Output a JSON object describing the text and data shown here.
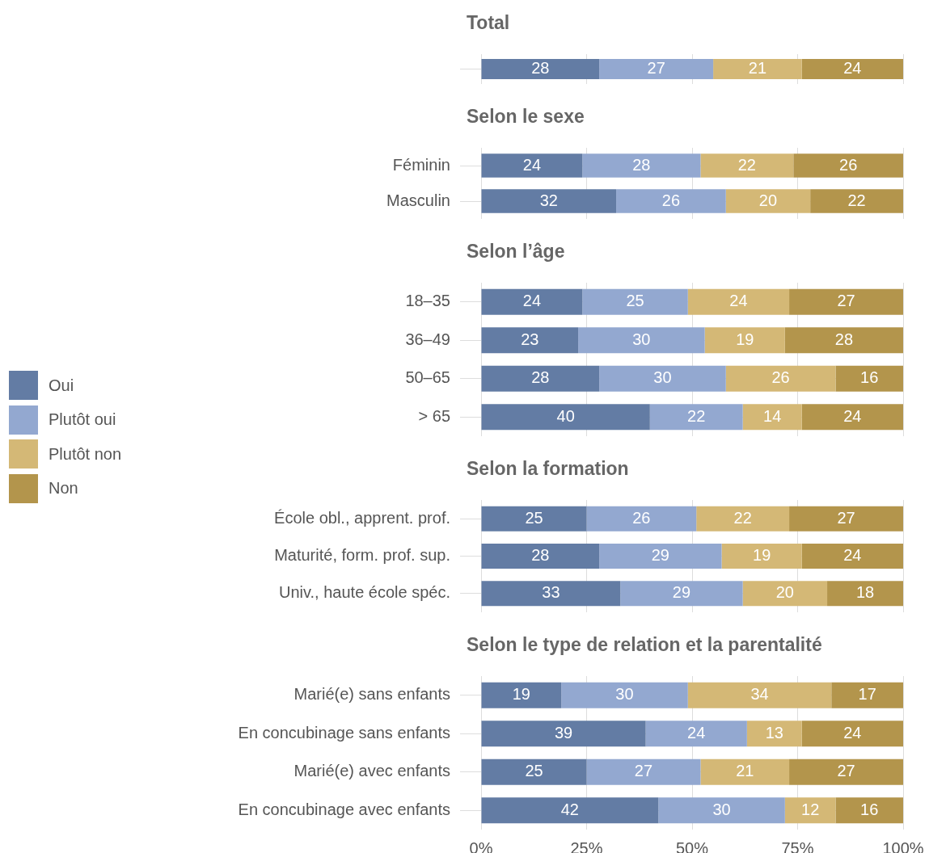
{
  "chart_data": [
    {
      "type": "bar",
      "title": "Total",
      "orientation": "horizontal",
      "stacked": true,
      "data_labels": true,
      "grid": true,
      "legend": "left",
      "tick_labels": "y",
      "xlim": [
        0,
        100
      ],
      "xticks": [
        {
          "value": 0,
          "label": null
        },
        {
          "value": 25,
          "label": null
        },
        {
          "value": 50,
          "label": null
        },
        {
          "value": 75,
          "label": null
        },
        {
          "value": 100,
          "label": null
        }
      ],
      "categories": [
        null
      ],
      "series": [
        {
          "name": "Oui",
          "color": "#637ca4",
          "values": [
            28
          ]
        },
        {
          "name": "Plutôt oui",
          "color": "#93a8d0",
          "values": [
            27
          ]
        },
        {
          "name": "Plutôt non",
          "color": "#d4b876",
          "values": [
            21
          ]
        },
        {
          "name": "Non",
          "color": "#b3954c",
          "values": [
            24
          ]
        }
      ]
    },
    {
      "type": "bar",
      "title": "Selon le sexe",
      "orientation": "horizontal",
      "stacked": true,
      "data_labels": true,
      "grid": true,
      "tick_labels": "y",
      "xlim": [
        0,
        100
      ],
      "xticks": [
        {
          "value": 0,
          "label": null
        },
        {
          "value": 25,
          "label": null
        },
        {
          "value": 50,
          "label": null
        },
        {
          "value": 75,
          "label": null
        },
        {
          "value": 100,
          "label": null
        }
      ],
      "categories": [
        "Féminin",
        "Masculin"
      ],
      "series": [
        {
          "color": "#637ca4",
          "values": [
            24,
            32
          ]
        },
        {
          "color": "#93a8d0",
          "values": [
            28,
            26
          ]
        },
        {
          "color": "#d4b876",
          "values": [
            22,
            20
          ]
        },
        {
          "color": "#b3954c",
          "values": [
            26,
            22
          ]
        }
      ]
    },
    {
      "type": "bar",
      "title": "Selon l’âge",
      "orientation": "horizontal",
      "stacked": true,
      "data_labels": true,
      "grid": true,
      "tick_labels": "y",
      "xlim": [
        0,
        100
      ],
      "xticks": [
        {
          "value": 0,
          "label": null
        },
        {
          "value": 25,
          "label": null
        },
        {
          "value": 50,
          "label": null
        },
        {
          "value": 75,
          "label": null
        },
        {
          "value": 100,
          "label": null
        }
      ],
      "categories": [
        "18–35",
        "36–49",
        "50–65",
        "> 65"
      ],
      "series": [
        {
          "color": "#637ca4",
          "values": [
            24,
            23,
            28,
            40
          ]
        },
        {
          "color": "#93a8d0",
          "values": [
            25,
            30,
            30,
            22
          ]
        },
        {
          "color": "#d4b876",
          "values": [
            24,
            19,
            26,
            14
          ]
        },
        {
          "color": "#b3954c",
          "values": [
            27,
            28,
            16,
            24
          ]
        }
      ]
    },
    {
      "type": "bar",
      "title": "Selon la formation",
      "orientation": "horizontal",
      "stacked": true,
      "data_labels": true,
      "grid": true,
      "tick_labels": "y",
      "xlim": [
        0,
        100
      ],
      "xticks": [
        {
          "value": 0,
          "label": null
        },
        {
          "value": 25,
          "label": null
        },
        {
          "value": 50,
          "label": null
        },
        {
          "value": 75,
          "label": null
        },
        {
          "value": 100,
          "label": null
        }
      ],
      "categories": [
        "École obl., apprent. prof.",
        "Maturité, form. prof. sup.",
        "Univ., haute école spéc."
      ],
      "series": [
        {
          "color": "#637ca4",
          "values": [
            25,
            28,
            33
          ]
        },
        {
          "color": "#93a8d0",
          "values": [
            26,
            29,
            29
          ]
        },
        {
          "color": "#d4b876",
          "values": [
            22,
            19,
            20
          ]
        },
        {
          "color": "#b3954c",
          "values": [
            27,
            24,
            18
          ]
        }
      ]
    },
    {
      "type": "bar",
      "title": "Selon le type de relation et la parentalité",
      "orientation": "horizontal",
      "stacked": true,
      "data_labels": true,
      "grid": true,
      "xlim": [
        0,
        100
      ],
      "xticks": [
        {
          "value": 0,
          "label": "0%"
        },
        {
          "value": 25,
          "label": "25%"
        },
        {
          "value": 50,
          "label": "50%"
        },
        {
          "value": 75,
          "label": "75%"
        },
        {
          "value": 100,
          "label": "100%"
        }
      ],
      "categories": [
        "Marié(e) sans enfants",
        "En concubinage sans enfants",
        "Marié(e) avec enfants",
        "En concubinage avec enfants"
      ],
      "series": [
        {
          "color": "#637ca4",
          "values": [
            19,
            39,
            25,
            42
          ]
        },
        {
          "color": "#93a8d0",
          "values": [
            30,
            24,
            27,
            30
          ]
        },
        {
          "color": "#d4b876",
          "values": [
            34,
            13,
            21,
            12
          ]
        },
        {
          "color": "#b3954c",
          "values": [
            17,
            24,
            27,
            16
          ]
        }
      ]
    }
  ]
}
